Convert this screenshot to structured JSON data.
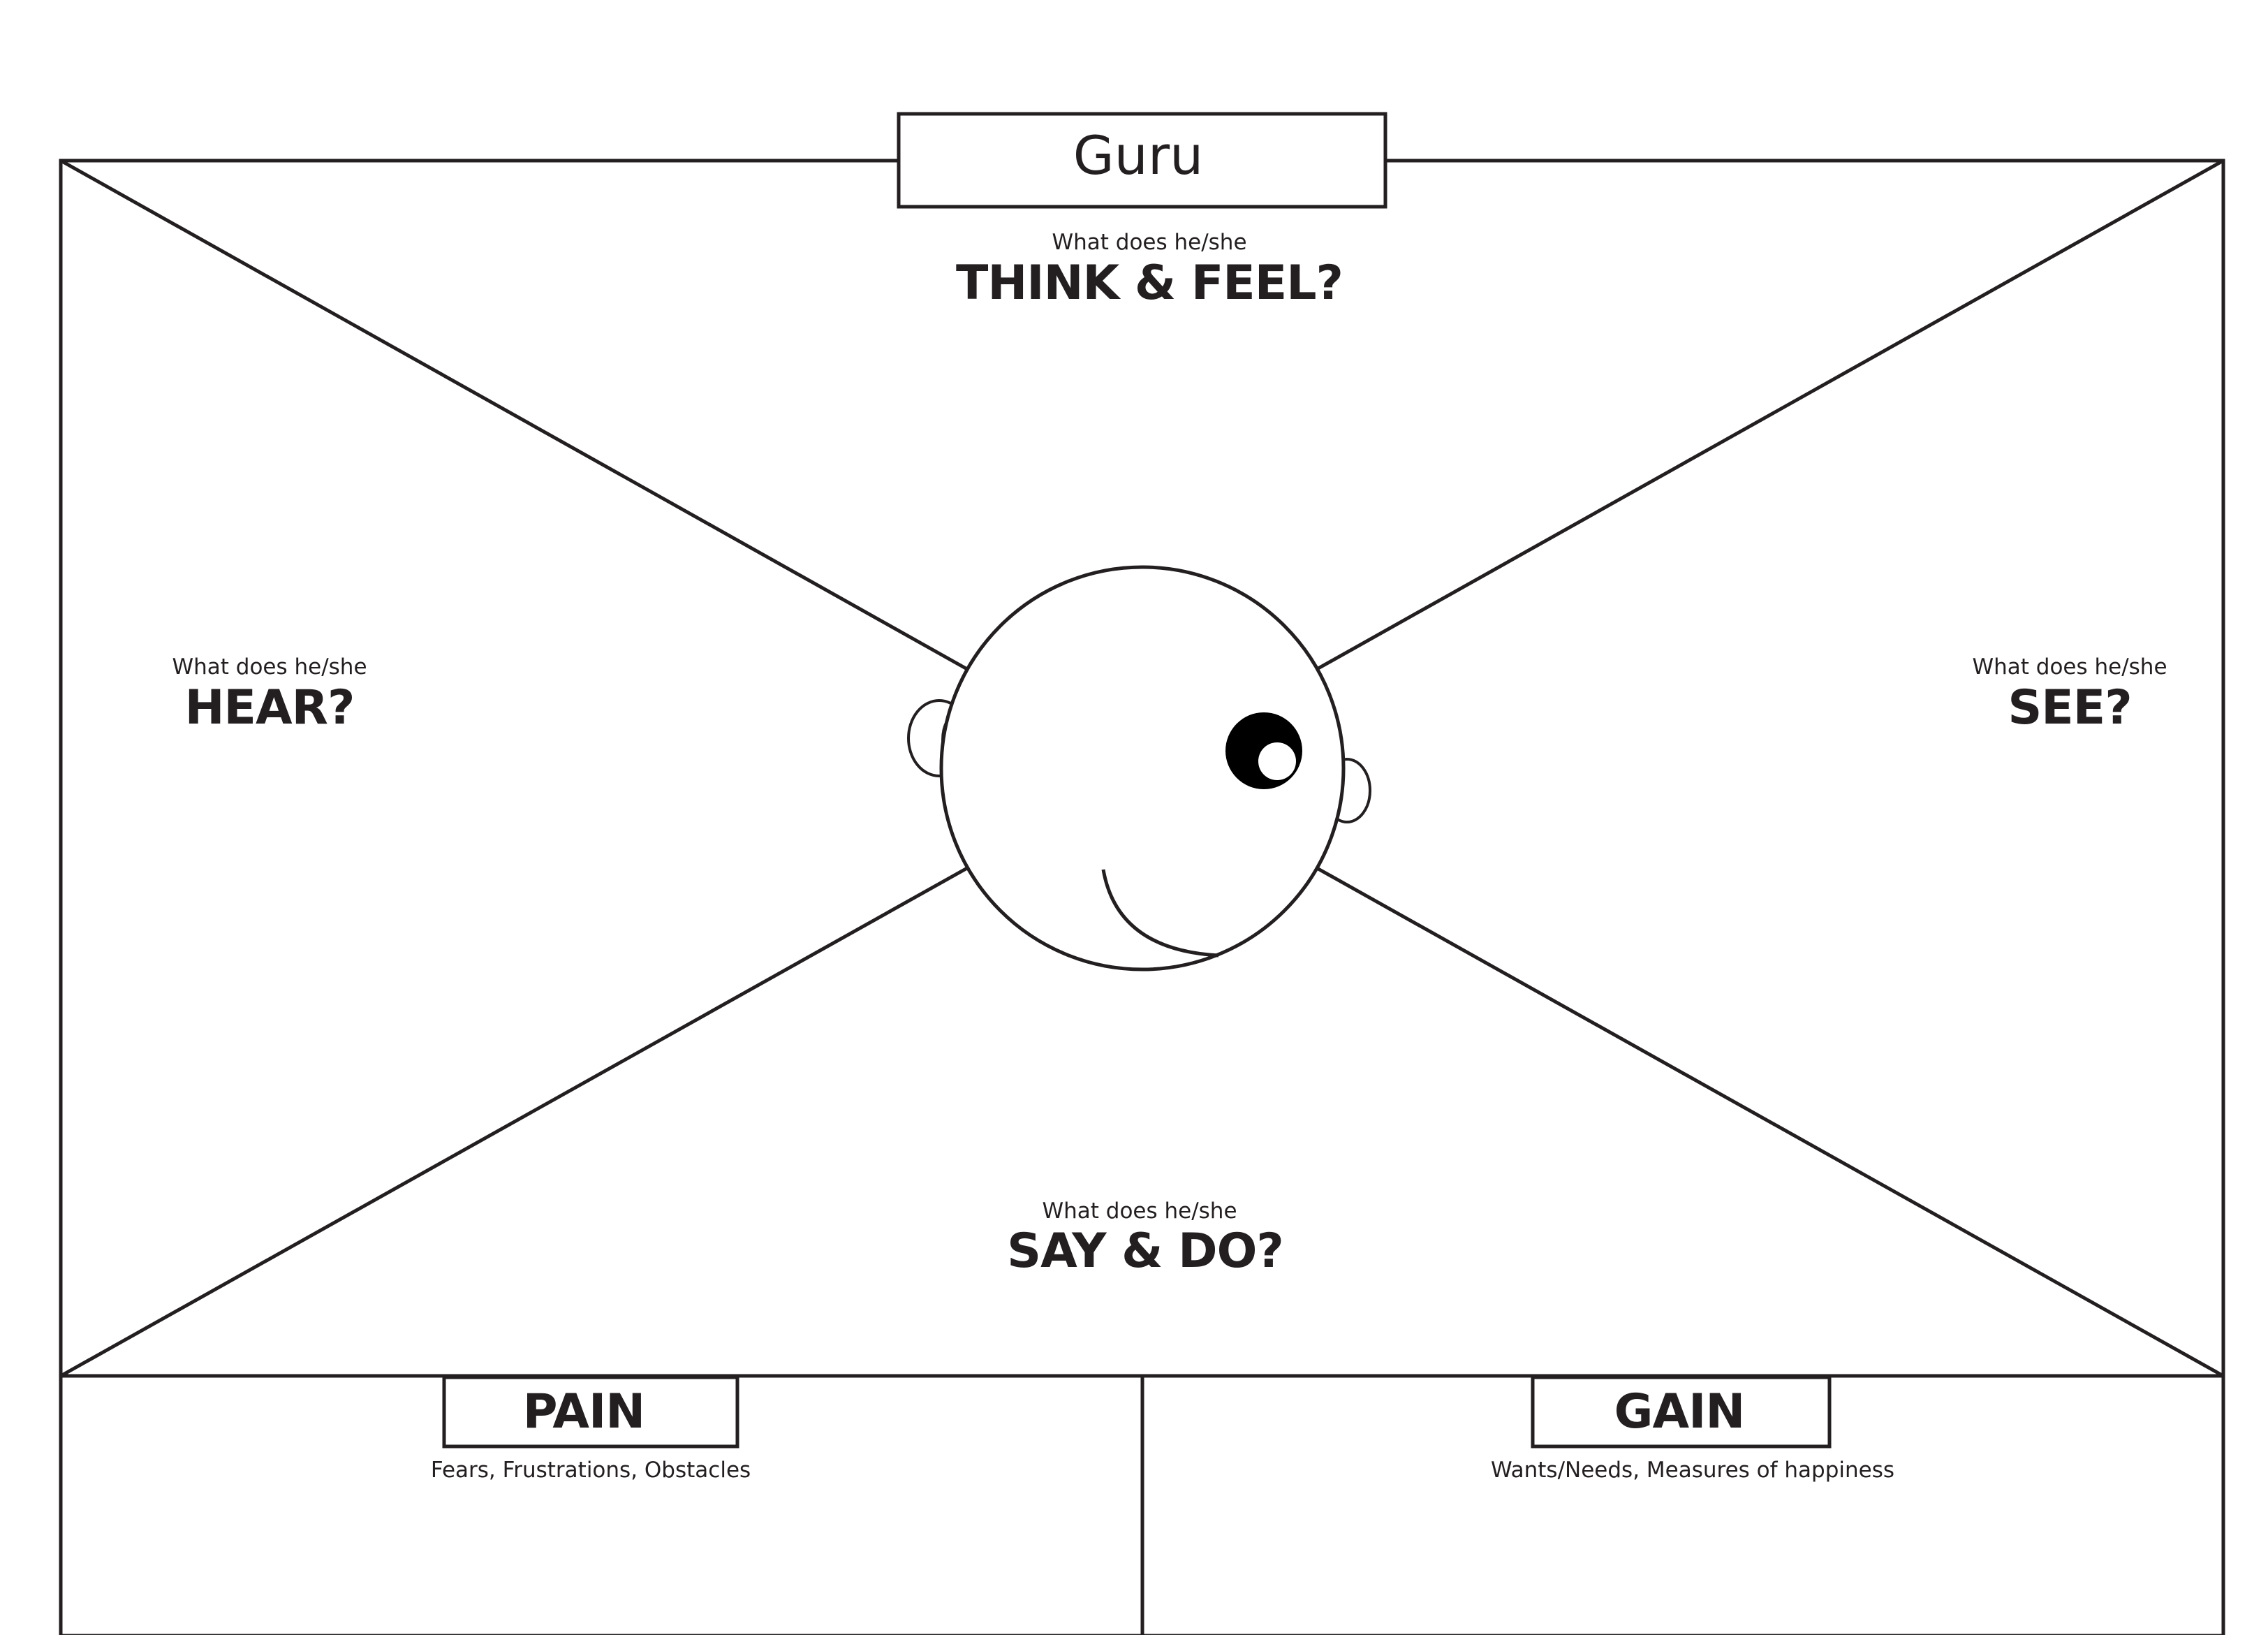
{
  "title": "Guru",
  "think_feel": {
    "question": "What does he/she",
    "heading": "THINK &  FEEL?"
  },
  "hear": {
    "question": "What does he/she",
    "heading": "HEAR?"
  },
  "see": {
    "question": "What does he/she",
    "heading": "SEE?"
  },
  "say_do": {
    "question": "What does he/she",
    "heading": "SAY & DO?"
  },
  "pain": {
    "heading": "PAIN",
    "subtitle": "Fears, Frustrations, Obstacles"
  },
  "gain": {
    "heading": "GAIN",
    "subtitle": "Wants/Needs, Measures of happiness"
  },
  "colors": {
    "line": "#231f20",
    "background": "#ffffff"
  }
}
